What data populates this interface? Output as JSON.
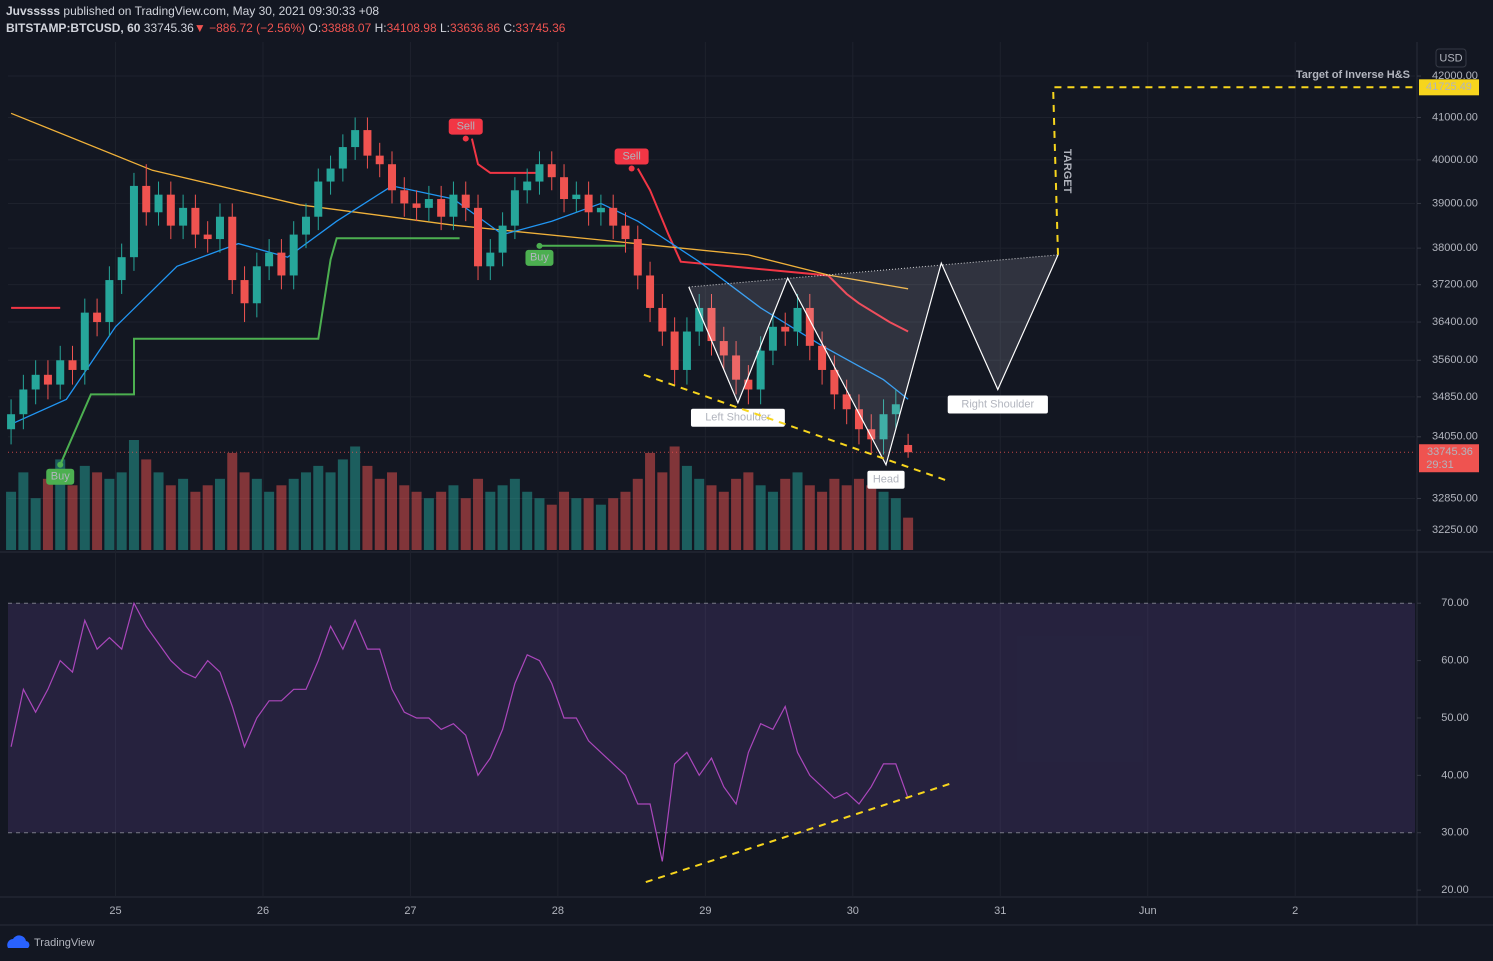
{
  "header": {
    "author": "Juvsssss",
    "published": "published on TradingView.com, May 30, 2021 09:30:33 +08",
    "symbol": "BITSTAMP:BTCUSD, 60",
    "arrow": "▼",
    "change": "−886.72 (−2.56%)",
    "o": "O:",
    "h": "H:",
    "l": "L:",
    "c": "C:"
  },
  "footer": {
    "brand": "TradingView"
  },
  "chart_data": [
    {
      "type": "candlestick",
      "currency": "USD",
      "log_scale": true,
      "grid": true,
      "up_color": "#26a69a",
      "down_color": "#ef5350",
      "countdown": "29:31",
      "xlim": [
        -17.5,
        211.5
      ],
      "xticks": [
        {
          "value": 0,
          "label": "25"
        },
        {
          "value": 24,
          "label": "26"
        },
        {
          "value": 48,
          "label": "27"
        },
        {
          "value": 72,
          "label": "28"
        },
        {
          "value": 96,
          "label": "29"
        },
        {
          "value": 120,
          "label": "30"
        },
        {
          "value": 144,
          "label": "31"
        },
        {
          "value": 168,
          "label": "Jun"
        },
        {
          "value": 192,
          "label": "2"
        }
      ],
      "ylim": [
        31880,
        42840
      ],
      "yticks": [
        {
          "value": 42000,
          "label": "42000.00"
        },
        {
          "value": 41000,
          "label": "41000.00"
        },
        {
          "value": 40000,
          "label": "40000.00"
        },
        {
          "value": 39000,
          "label": "39000.00"
        },
        {
          "value": 38000,
          "label": "38000.00"
        },
        {
          "value": 37200,
          "label": "37200.00"
        },
        {
          "value": 36400,
          "label": "36400.00"
        },
        {
          "value": 35600,
          "label": "35600.00"
        },
        {
          "value": 34850,
          "label": "34850.00"
        },
        {
          "value": 34050,
          "label": "34050.00"
        },
        {
          "value": 32850,
          "label": "32850.00"
        },
        {
          "value": 32250,
          "label": "32250.00"
        }
      ],
      "x": [
        -17,
        -15,
        -13,
        -11,
        -9,
        -7,
        -5,
        -3,
        -1,
        1,
        3,
        5,
        7,
        9,
        11,
        13,
        15,
        17,
        19,
        21,
        23,
        25,
        27,
        29,
        31,
        33,
        35,
        37,
        39,
        41,
        43,
        45,
        47,
        49,
        51,
        53,
        55,
        57,
        59,
        61,
        63,
        65,
        67,
        69,
        71,
        73,
        75,
        77,
        79,
        81,
        83,
        85,
        87,
        89,
        91,
        93,
        95,
        97,
        99,
        101,
        103,
        105,
        107,
        109,
        111,
        113,
        115,
        117,
        119,
        121,
        123,
        125,
        127,
        129
      ],
      "open": [
        34200,
        34500,
        35000,
        35300,
        35100,
        35600,
        35400,
        36600,
        36400,
        37300,
        37800,
        39400,
        38800,
        39200,
        38500,
        38900,
        38300,
        38200,
        38700,
        37300,
        36800,
        37600,
        37900,
        37400,
        38300,
        38700,
        39500,
        39800,
        40300,
        40700,
        40100,
        39900,
        39300,
        39000,
        38900,
        39100,
        38700,
        39200,
        38900,
        37600,
        37900,
        38500,
        39300,
        39500,
        39900,
        39600,
        39100,
        39200,
        38800,
        38900,
        38500,
        38200,
        37400,
        36700,
        36200,
        35400,
        36200,
        36700,
        36000,
        35700,
        35200,
        35000,
        35800,
        36300,
        36200,
        36700,
        35900,
        35400,
        34900,
        34600,
        34200,
        34000,
        34500,
        33888.07
      ],
      "high": [
        34800,
        35300,
        35600,
        35600,
        35900,
        35900,
        36900,
        36900,
        37600,
        38100,
        39700,
        39900,
        39500,
        39500,
        39200,
        39200,
        38600,
        39000,
        39000,
        37600,
        37900,
        38200,
        38200,
        38600,
        39000,
        39800,
        40100,
        40600,
        41000,
        41000,
        40400,
        40200,
        39600,
        39300,
        39400,
        39400,
        39500,
        39500,
        39200,
        38200,
        38800,
        39600,
        39800,
        40200,
        40200,
        39900,
        39500,
        39500,
        39200,
        39200,
        38800,
        38500,
        37700,
        37000,
        36500,
        36500,
        37000,
        37000,
        36300,
        36000,
        35500,
        36100,
        36600,
        36600,
        37000,
        37000,
        36200,
        35700,
        35200,
        34900,
        34500,
        34800,
        35000,
        34108.98
      ],
      "low": [
        33900,
        34200,
        34700,
        34800,
        34800,
        35100,
        35100,
        36100,
        36100,
        37000,
        37500,
        38500,
        38500,
        38200,
        38200,
        38000,
        37900,
        37900,
        37000,
        36400,
        36500,
        37300,
        37100,
        37100,
        38000,
        38400,
        39200,
        39500,
        40000,
        39800,
        39600,
        39000,
        38700,
        38600,
        38600,
        38400,
        38400,
        38600,
        37300,
        37300,
        37600,
        38200,
        39000,
        39200,
        39300,
        38800,
        38800,
        38500,
        38500,
        38200,
        37900,
        37100,
        36400,
        35900,
        35100,
        35100,
        35900,
        35700,
        35400,
        34900,
        34700,
        34700,
        35500,
        35900,
        35900,
        35600,
        35100,
        34600,
        34300,
        33900,
        33700,
        33700,
        34200,
        33636.86
      ],
      "close": [
        34500,
        35000,
        35300,
        35100,
        35600,
        35400,
        36600,
        36400,
        37300,
        37800,
        39400,
        38800,
        39200,
        38500,
        38900,
        38300,
        38200,
        38700,
        37300,
        36800,
        37600,
        37900,
        37400,
        38300,
        38700,
        39500,
        39800,
        40300,
        40700,
        40100,
        39900,
        39300,
        39000,
        38900,
        39100,
        38700,
        39200,
        38900,
        37600,
        37900,
        38500,
        39300,
        39500,
        39900,
        39600,
        39100,
        39200,
        38800,
        38900,
        38500,
        38200,
        37400,
        36700,
        36200,
        35400,
        36200,
        36700,
        36000,
        35700,
        35200,
        35000,
        35800,
        36300,
        36200,
        36700,
        35900,
        35400,
        34900,
        34600,
        34200,
        34000,
        34500,
        34700,
        33745.36
      ],
      "volume": [
        45,
        60,
        40,
        55,
        70,
        50,
        65,
        60,
        55,
        60,
        85,
        70,
        60,
        50,
        55,
        45,
        50,
        55,
        75,
        60,
        55,
        45,
        50,
        55,
        60,
        65,
        60,
        70,
        80,
        65,
        55,
        60,
        50,
        45,
        40,
        45,
        50,
        40,
        55,
        45,
        50,
        55,
        45,
        40,
        35,
        45,
        40,
        40,
        35,
        40,
        45,
        55,
        75,
        60,
        80,
        65,
        55,
        50,
        45,
        55,
        60,
        50,
        45,
        55,
        60,
        50,
        45,
        55,
        50,
        55,
        50,
        45,
        40,
        25
      ],
      "lines": [
        {
          "color": "#f0b13a",
          "x": [
            -17,
            6,
            30,
            55,
            79,
            103,
            116,
            129
          ],
          "values": [
            41100,
            39760,
            38970,
            38510,
            38180,
            37850,
            37410,
            37110
          ]
        },
        {
          "color": "#2196f3",
          "x": [
            -17,
            -8,
            0,
            10,
            20,
            28,
            36,
            45,
            55,
            63,
            71,
            79,
            85,
            95,
            105,
            115,
            125,
            129
          ],
          "values": [
            34300,
            34800,
            36300,
            37600,
            38100,
            37800,
            38600,
            39400,
            39100,
            38300,
            38600,
            39000,
            38600,
            37700,
            36700,
            35900,
            35200,
            34800
          ]
        }
      ],
      "supertrend": [
        {
          "color": "#4caf50",
          "x": [
            -9,
            -4,
            -4,
            3,
            3,
            33,
            35,
            36,
            56,
            57,
            69,
            83
          ],
          "values": [
            33500,
            34900,
            34900,
            34900,
            36050,
            36050,
            37750,
            38220,
            38220,
            null,
            38050,
            38050
          ]
        },
        {
          "color": "#f23645",
          "x": [
            -17,
            -9,
            -8,
            58,
            59,
            61,
            69,
            70,
            85,
            87,
            90,
            92,
            100,
            116,
            119,
            121,
            126,
            129
          ],
          "values": [
            36700,
            36700,
            null,
            40500,
            39900,
            39700,
            39700,
            null,
            39800,
            39300,
            38300,
            37700,
            37600,
            37400,
            37000,
            36800,
            36400,
            36200
          ]
        }
      ],
      "signals": [
        {
          "label": "Buy",
          "color": "#4caf50",
          "placement": "below",
          "x": -9,
          "price": 33500
        },
        {
          "label": "Sell",
          "color": "#f23645",
          "placement": "above",
          "x": 57,
          "price": 40500
        },
        {
          "label": "Buy",
          "color": "#4caf50",
          "placement": "below",
          "x": 69,
          "price": 38050
        },
        {
          "label": "Sell",
          "color": "#f23645",
          "placement": "above",
          "x": 84,
          "price": 39800
        }
      ],
      "pattern": {
        "color": "#ffffff",
        "points": [
          {
            "x": 93.3,
            "y": 37150
          },
          {
            "x": 101.3,
            "y": 34730,
            "label": "Left Shoulder"
          },
          {
            "x": 109.4,
            "y": 37340
          },
          {
            "x": 125.4,
            "y": 33500,
            "label": "Head"
          },
          {
            "x": 134.4,
            "y": 37670
          },
          {
            "x": 143.6,
            "y": 35000,
            "label": "Right Shoulder"
          },
          {
            "x": 153.4,
            "y": 37850
          }
        ]
      },
      "trendlines": [
        {
          "color": "#f7d51d",
          "x": [
            86.0,
            135.2
          ],
          "values": [
            35300,
            33200
          ]
        }
      ],
      "target": {
        "color": "#f7d51d",
        "label": "TARGET",
        "title": "Target of Inverse H&S",
        "x": [
          153.4,
          152.6,
          212
        ],
        "values": [
          37850,
          41725.49,
          41725.49
        ]
      }
    },
    {
      "type": "line",
      "color": "#ab47bc",
      "band": [
        30,
        70
      ],
      "xlim": [
        -17.5,
        211.5
      ],
      "ylim": [
        18.8,
        78.4
      ],
      "yticks": [
        {
          "value": 70,
          "label": "70.00"
        },
        {
          "value": 60,
          "label": "60.00"
        },
        {
          "value": 50,
          "label": "50.00"
        },
        {
          "value": 40,
          "label": "40.00"
        },
        {
          "value": 30,
          "label": "30.00"
        },
        {
          "value": 20,
          "label": "20.00"
        }
      ],
      "x": [
        -17,
        -15,
        -13,
        -11,
        -9,
        -7,
        -5,
        -3,
        -1,
        1,
        3,
        5,
        7,
        9,
        11,
        13,
        15,
        17,
        19,
        21,
        23,
        25,
        27,
        29,
        31,
        33,
        35,
        37,
        39,
        41,
        43,
        45,
        47,
        49,
        51,
        53,
        55,
        57,
        59,
        61,
        63,
        65,
        67,
        69,
        71,
        73,
        75,
        77,
        79,
        81,
        83,
        85,
        87,
        89,
        91,
        93,
        95,
        97,
        99,
        101,
        103,
        105,
        107,
        109,
        111,
        113,
        115,
        117,
        119,
        121,
        123,
        125,
        127,
        129
      ],
      "values": [
        45,
        55,
        51,
        55,
        60,
        58,
        67,
        62,
        64,
        62,
        70,
        66,
        63,
        60,
        58,
        57,
        60,
        58,
        52,
        45,
        50,
        53,
        53,
        55,
        55,
        60,
        66,
        62,
        67,
        62,
        62,
        55,
        51,
        50,
        50,
        48,
        49,
        47,
        40,
        43,
        48,
        56,
        61,
        60,
        56,
        50,
        50,
        46,
        44,
        42,
        40,
        35,
        35,
        25,
        42,
        44,
        40,
        43,
        38,
        35,
        44,
        49,
        48,
        52,
        44,
        40,
        38,
        36,
        37,
        35,
        38,
        42,
        42,
        36
      ],
      "trendlines": [
        {
          "color": "#f7d51d",
          "x": [
            86.3,
            135.7
          ],
          "values": [
            21.4,
            38.5
          ]
        }
      ]
    }
  ]
}
